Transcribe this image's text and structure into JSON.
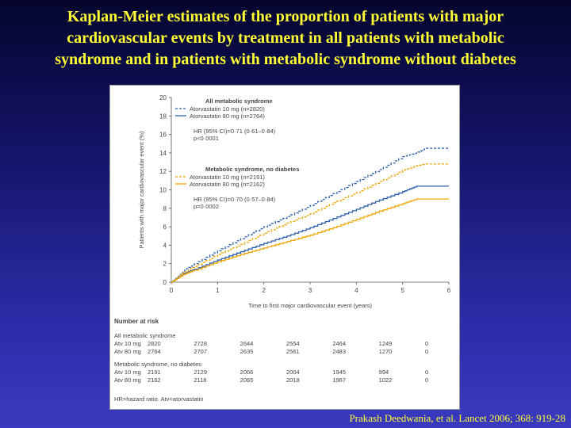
{
  "slide": {
    "title_lines": [
      "Kaplan-Meier estimates of the proportion of patients with major",
      "cardiovascular events by treatment in all patients with metabolic",
      "syndrome and in patients with metabolic syndrome without diabetes"
    ],
    "citation": "Prakash Deedwania, et al. Lancet 2006; 368: 919-28"
  },
  "colors": {
    "atv10_all": "#2b5fae",
    "atv80_all": "#2b5fae",
    "atv10_nodm": "#f0a500",
    "atv80_nodm": "#f0a500",
    "axis": "#555555",
    "text": "#444444"
  },
  "chart_data": {
    "type": "line",
    "xlabel": "Time to first major cardiovascular event (years)",
    "ylabel": "Patients with major cardiovascular event (%)",
    "xlim": [
      0,
      6
    ],
    "ylim": [
      0,
      20
    ],
    "xticks": [
      "0",
      "1",
      "2",
      "3",
      "4",
      "5",
      "6"
    ],
    "yticks": [
      "0",
      "2",
      "4",
      "6",
      "8",
      "10",
      "12",
      "14",
      "16",
      "18",
      "20"
    ],
    "legend": [
      {
        "heading": "All metabolic syndrome",
        "entries": [
          "Atorvastatin 10 mg (n=2820)",
          "Atorvastatin 80 mg (n=2764)"
        ],
        "stats": [
          "HR (95% CI)=0·71 (0·61–0·84)",
          "p<0·0001"
        ]
      },
      {
        "heading": "Metabolic syndrome, no diabetes",
        "entries": [
          "Atorvastatin 10 mg (n=2191)",
          "Atorvastatin 80 mg (n=2162)"
        ],
        "stats": [
          "HR (95% CI)=0·70 (0·57–0·84)",
          "p=0·0002"
        ]
      }
    ],
    "series": [
      {
        "name": "Atorvastatin 10 mg (n=2820)",
        "group": "All metabolic syndrome",
        "style": "dashed",
        "points": [
          [
            0,
            0
          ],
          [
            0.25,
            1.2
          ],
          [
            0.5,
            2.0
          ],
          [
            1,
            3.4
          ],
          [
            1.5,
            4.7
          ],
          [
            2,
            6.0
          ],
          [
            2.5,
            7.1
          ],
          [
            3,
            8.3
          ],
          [
            3.5,
            9.6
          ],
          [
            4,
            10.9
          ],
          [
            4.5,
            12.2
          ],
          [
            5,
            13.6
          ],
          [
            5.3,
            14.0
          ],
          [
            5.5,
            14.5
          ],
          [
            6,
            14.5
          ]
        ]
      },
      {
        "name": "Atorvastatin 80 mg (n=2764)",
        "group": "All metabolic syndrome",
        "style": "solid",
        "points": [
          [
            0,
            0
          ],
          [
            0.25,
            0.9
          ],
          [
            0.5,
            1.4
          ],
          [
            1,
            2.4
          ],
          [
            1.5,
            3.3
          ],
          [
            2,
            4.2
          ],
          [
            2.5,
            5.0
          ],
          [
            3,
            5.9
          ],
          [
            3.5,
            6.9
          ],
          [
            4,
            7.9
          ],
          [
            4.5,
            8.9
          ],
          [
            5,
            9.8
          ],
          [
            5.3,
            10.4
          ],
          [
            6,
            10.4
          ]
        ]
      },
      {
        "name": "Atorvastatin 10 mg (n=2191)",
        "group": "Metabolic syndrome, no diabetes",
        "style": "dashed",
        "points": [
          [
            0,
            0
          ],
          [
            0.25,
            1.0
          ],
          [
            0.5,
            1.7
          ],
          [
            1,
            3.0
          ],
          [
            1.5,
            4.1
          ],
          [
            2,
            5.3
          ],
          [
            2.5,
            6.4
          ],
          [
            3,
            7.4
          ],
          [
            3.5,
            8.6
          ],
          [
            4,
            9.7
          ],
          [
            4.5,
            10.9
          ],
          [
            5,
            12.1
          ],
          [
            5.3,
            12.6
          ],
          [
            5.5,
            12.8
          ],
          [
            6,
            12.8
          ]
        ]
      },
      {
        "name": "Atorvastatin 80 mg (n=2162)",
        "group": "Metabolic syndrome, no diabetes",
        "style": "solid",
        "points": [
          [
            0,
            0
          ],
          [
            0.25,
            0.8
          ],
          [
            0.5,
            1.3
          ],
          [
            1,
            2.2
          ],
          [
            1.5,
            3.0
          ],
          [
            2,
            3.7
          ],
          [
            2.5,
            4.4
          ],
          [
            3,
            5.1
          ],
          [
            3.5,
            5.9
          ],
          [
            4,
            6.8
          ],
          [
            4.5,
            7.7
          ],
          [
            5,
            8.5
          ],
          [
            5.3,
            9.0
          ],
          [
            6,
            9.0
          ]
        ]
      }
    ],
    "risk_table": {
      "title": "Number at risk",
      "groups": [
        {
          "label": "All metabolic syndrome",
          "rows": [
            {
              "label": "Atv 10 mg",
              "values": [
                "2820",
                "2728",
                "2644",
                "2554",
                "2464",
                "1249",
                "0"
              ]
            },
            {
              "label": "Atv 80 mg",
              "values": [
                "2764",
                "2707",
                "2635",
                "2561",
                "2483",
                "1270",
                "0"
              ]
            }
          ]
        },
        {
          "label": "Metabolic syndrome, no diabetes",
          "rows": [
            {
              "label": "Atv 10 mg",
              "values": [
                "2191",
                "2129",
                "2066",
                "2004",
                "1945",
                "994",
                "0"
              ]
            },
            {
              "label": "Atv 80 mg",
              "values": [
                "2162",
                "2118",
                "2065",
                "2018",
                "1967",
                "1022",
                "0"
              ]
            }
          ]
        }
      ]
    },
    "footnote": "HR=hazard ratio. Atv=atorvastatin"
  }
}
